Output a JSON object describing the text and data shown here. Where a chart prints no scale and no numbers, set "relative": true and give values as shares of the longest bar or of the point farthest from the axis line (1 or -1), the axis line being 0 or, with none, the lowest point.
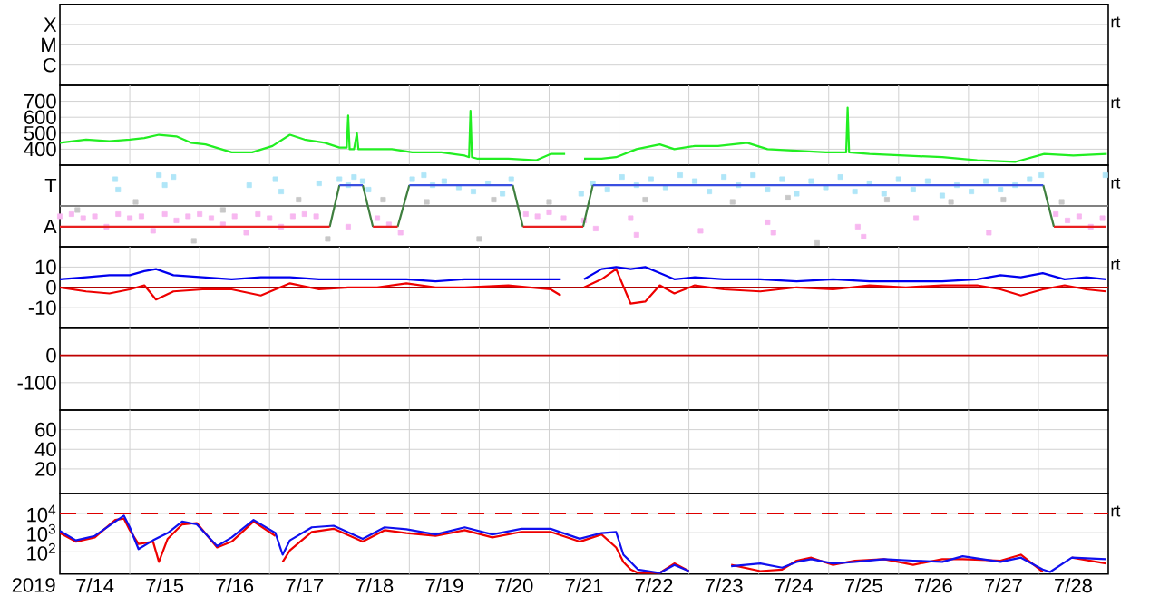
{
  "chart_data": [
    {
      "type": "other",
      "annotations": [
        "X",
        "M",
        "C"
      ],
      "y2label": "rt"
    },
    {
      "type": "line",
      "xlim": [
        "2019-07-14T00:00",
        "2019-07-29T00:00"
      ],
      "xticks": [
        {
          "value": "2019-07-15T00:00",
          "label": null
        },
        {
          "value": "2019-07-16T00:00",
          "label": null
        },
        {
          "value": "2019-07-17T00:00",
          "label": null
        },
        {
          "value": "2019-07-18T00:00",
          "label": null
        },
        {
          "value": "2019-07-19T00:00",
          "label": null
        },
        {
          "value": "2019-07-20T00:00",
          "label": null
        },
        {
          "value": "2019-07-21T00:00",
          "label": null
        },
        {
          "value": "2019-07-22T00:00",
          "label": null
        },
        {
          "value": "2019-07-23T00:00",
          "label": null
        },
        {
          "value": "2019-07-24T00:00",
          "label": null
        },
        {
          "value": "2019-07-25T00:00",
          "label": null
        },
        {
          "value": "2019-07-26T00:00",
          "label": null
        },
        {
          "value": "2019-07-27T00:00",
          "label": null
        },
        {
          "value": "2019-07-28T00:00",
          "label": null
        }
      ],
      "ylim": [
        300,
        800
      ],
      "yticks": [
        400,
        500,
        600,
        700
      ],
      "grid": true,
      "tick_labels": "y",
      "y2label": "rt",
      "x": [
        "2019-07-14T00:00",
        "2019-07-14T09:00",
        "2019-07-14T17:00",
        "2019-07-15T00:00",
        "2019-07-15T05:00",
        "2019-07-15T10:00",
        "2019-07-15T16:00",
        "2019-07-15T21:00",
        "2019-07-16T02:00",
        "2019-07-16T11:00",
        "2019-07-16T18:00",
        "2019-07-17T01:00",
        "2019-07-17T07:00",
        "2019-07-17T12:00",
        "2019-07-17T19:00",
        "2019-07-18T00:00",
        "2019-07-18T02:30",
        "2019-07-18T03:00",
        "2019-07-18T03:30",
        "2019-07-18T05:00",
        "2019-07-18T06:00",
        "2019-07-18T06:30",
        "2019-07-18T08:00",
        "2019-07-18T18:00",
        "2019-07-19T01:00",
        "2019-07-19T11:00",
        "2019-07-19T19:00",
        "2019-07-19T20:30",
        "2019-07-19T21:00",
        "2019-07-19T21:30",
        "2019-07-19T23:30",
        "2019-07-20T10:00",
        "2019-07-20T19:30",
        "2019-07-21T00:30",
        "2019-07-21T05:30",
        "2019-07-21T08:00",
        "2019-07-21T12:00",
        "2019-07-21T18:00",
        "2019-07-21T23:00",
        "2019-07-22T06:00",
        "2019-07-22T14:00",
        "2019-07-22T19:00",
        "2019-07-23T02:00",
        "2019-07-23T10:00",
        "2019-07-23T20:00",
        "2019-07-24T03:00",
        "2019-07-24T13:00",
        "2019-07-24T23:00",
        "2019-07-25T06:00",
        "2019-07-25T06:30",
        "2019-07-25T07:00",
        "2019-07-25T14:00",
        "2019-07-26T02:00",
        "2019-07-26T15:00",
        "2019-07-27T03:00",
        "2019-07-27T16:00",
        "2019-07-28T02:00",
        "2019-07-28T12:00",
        "2019-07-28T23:30"
      ],
      "series": [
        {
          "color": "#22ee22",
          "values": [
            440,
            460,
            450,
            460,
            470,
            490,
            480,
            440,
            430,
            380,
            380,
            420,
            490,
            460,
            440,
            410,
            410,
            610,
            400,
            400,
            500,
            400,
            400,
            400,
            380,
            380,
            360,
            350,
            640,
            350,
            340,
            340,
            330,
            370,
            370,
            null,
            340,
            340,
            350,
            400,
            430,
            400,
            420,
            420,
            440,
            400,
            390,
            380,
            380,
            660,
            380,
            370,
            360,
            350,
            330,
            320,
            370,
            360,
            370
          ]
        }
      ]
    },
    {
      "type": "line",
      "relative": true,
      "xlim": [
        "2019-07-14T00:00",
        "2019-07-29T00:00"
      ],
      "tick_labels": false,
      "annotations": [
        "T",
        "A"
      ],
      "y2label": "rt",
      "ref_lines": [
        {
          "axis": "y",
          "value": 0,
          "color": "#808080"
        }
      ],
      "series": [
        {
          "type": "scatter",
          "marker": "square",
          "color": "#c8c8c8",
          "x": [
            "2019-07-14T06:00",
            "2019-07-15T02:00",
            "2019-07-15T22:00",
            "2019-07-16T08:00",
            "2019-07-17T10:00",
            "2019-07-17T20:00",
            "2019-07-18T15:00",
            "2019-07-19T06:00",
            "2019-07-20T00:00",
            "2019-07-20T05:00",
            "2019-07-21T00:00",
            "2019-07-22T09:00",
            "2019-07-23T15:00",
            "2019-07-24T10:00",
            "2019-07-24T20:00",
            "2019-07-25T20:00",
            "2019-07-26T18:00",
            "2019-07-27T12:00",
            "2019-07-28T08:00"
          ],
          "values": [
            -0.11,
            0.11,
            -0.94,
            -0.11,
            0.17,
            -0.89,
            0.17,
            0.11,
            -0.89,
            0.17,
            0.11,
            0.17,
            0.11,
            0.22,
            -1,
            0.17,
            0.11,
            0.17,
            0.11
          ]
        },
        {
          "type": "scatter",
          "marker": "square",
          "color": "#f7b8f0",
          "x": [
            "2019-07-14T00:00",
            "2019-07-14T04:00",
            "2019-07-14T08:00",
            "2019-07-14T12:00",
            "2019-07-14T16:00",
            "2019-07-14T20:00",
            "2019-07-15T00:00",
            "2019-07-15T04:00",
            "2019-07-15T08:00",
            "2019-07-15T12:00",
            "2019-07-15T16:00",
            "2019-07-15T20:00",
            "2019-07-16T00:00",
            "2019-07-16T04:00",
            "2019-07-16T08:00",
            "2019-07-16T12:00",
            "2019-07-16T16:00",
            "2019-07-16T20:00",
            "2019-07-17T00:00",
            "2019-07-17T04:00",
            "2019-07-17T08:00",
            "2019-07-17T12:00",
            "2019-07-17T16:00",
            "2019-07-18T03:00",
            "2019-07-18T13:00",
            "2019-07-18T17:00",
            "2019-07-18T21:00",
            "2019-07-20T16:00",
            "2019-07-20T20:00",
            "2019-07-21T00:00",
            "2019-07-21T05:00",
            "2019-07-21T12:00",
            "2019-07-21T16:00",
            "2019-07-22T04:00",
            "2019-07-22T06:00",
            "2019-07-23T04:00",
            "2019-07-24T03:00",
            "2019-07-24T05:00",
            "2019-07-25T10:00",
            "2019-07-25T12:00",
            "2019-07-26T06:00",
            "2019-07-27T07:00",
            "2019-07-28T06:00",
            "2019-07-28T10:00",
            "2019-07-28T14:00",
            "2019-07-28T18:00",
            "2019-07-28T22:00"
          ],
          "values": [
            -0.28,
            -0.22,
            -0.33,
            -0.28,
            -0.56,
            -0.22,
            -0.33,
            -0.28,
            -0.67,
            -0.22,
            -0.39,
            -0.28,
            -0.22,
            -0.33,
            -0.5,
            -0.28,
            -0.72,
            -0.22,
            -0.33,
            -0.56,
            -0.28,
            -0.22,
            -0.28,
            -0.56,
            -0.33,
            -0.5,
            -0.72,
            -0.22,
            -0.28,
            -0.17,
            -0.33,
            -0.39,
            -0.61,
            -0.33,
            -0.78,
            -0.67,
            -0.44,
            -0.72,
            -0.56,
            -0.83,
            -0.33,
            -0.72,
            -0.22,
            -0.39,
            -0.28,
            -0.56,
            -0.33
          ]
        },
        {
          "type": "scatter",
          "marker": "square",
          "color": "#b0e6f8",
          "x": [
            "2019-07-14T19:00",
            "2019-07-14T20:00",
            "2019-07-15T10:00",
            "2019-07-15T12:00",
            "2019-07-15T15:00",
            "2019-07-16T17:00",
            "2019-07-17T02:00",
            "2019-07-17T04:00",
            "2019-07-17T17:00",
            "2019-07-18T00:00",
            "2019-07-18T03:00",
            "2019-07-18T05:00",
            "2019-07-18T08:00",
            "2019-07-18T10:00",
            "2019-07-19T01:00",
            "2019-07-19T05:00",
            "2019-07-19T08:00",
            "2019-07-19T12:00",
            "2019-07-19T17:00",
            "2019-07-19T22:00",
            "2019-07-20T03:00",
            "2019-07-20T08:00",
            "2019-07-20T11:00",
            "2019-07-21T11:00",
            "2019-07-21T15:00",
            "2019-07-21T20:00",
            "2019-07-22T01:00",
            "2019-07-22T06:00",
            "2019-07-22T11:00",
            "2019-07-22T16:00",
            "2019-07-22T21:00",
            "2019-07-23T02:00",
            "2019-07-23T07:00",
            "2019-07-23T12:00",
            "2019-07-23T17:00",
            "2019-07-23T22:00",
            "2019-07-24T03:00",
            "2019-07-24T08:00",
            "2019-07-24T13:00",
            "2019-07-24T18:00",
            "2019-07-24T23:00",
            "2019-07-25T04:00",
            "2019-07-25T09:00",
            "2019-07-25T14:00",
            "2019-07-25T19:00",
            "2019-07-26T00:00",
            "2019-07-26T05:00",
            "2019-07-26T10:00",
            "2019-07-26T15:00",
            "2019-07-26T20:00",
            "2019-07-27T01:00",
            "2019-07-27T06:00",
            "2019-07-27T11:00",
            "2019-07-27T16:00",
            "2019-07-27T21:00",
            "2019-07-28T01:00",
            "2019-07-28T23:00"
          ],
          "values": [
            0.72,
            0.44,
            0.83,
            0.56,
            0.78,
            0.56,
            0.72,
            0.39,
            0.61,
            0.72,
            0.56,
            0.78,
            0.67,
            0.44,
            0.72,
            0.83,
            0.56,
            0.67,
            0.5,
            0.39,
            0.61,
            0.33,
            0.72,
            0.33,
            0.61,
            0.44,
            0.78,
            0.56,
            0.72,
            0.5,
            0.83,
            0.67,
            0.39,
            0.78,
            0.56,
            0.83,
            0.44,
            0.72,
            0.33,
            0.67,
            0.5,
            0.78,
            0.39,
            0.61,
            0.33,
            0.72,
            0.44,
            0.67,
            0.28,
            0.56,
            0.39,
            0.67,
            0.44,
            0.56,
            0.72,
            0.83,
            0.83
          ]
        },
        {
          "type": "line",
          "color": "#3f7f3f",
          "x": [
            "2019-07-17T20:40",
            "2019-07-18T00:00",
            "2019-07-18T04:00",
            "2019-07-18T08:00",
            "2019-07-18T11:30",
            "2019-07-18T16:00",
            "2019-07-18T20:00",
            "2019-07-19T00:00",
            "2019-07-19T12:00",
            "2019-07-20T11:30",
            "2019-07-20T15:00",
            "2019-07-21T00:00",
            "2019-07-21T11:40",
            "2019-07-21T15:00",
            "2019-07-24T00:00",
            "2019-07-28T01:40",
            "2019-07-28T05:20"
          ],
          "values": [
            -0.56,
            0.56,
            null,
            0.56,
            -0.56,
            null,
            -0.56,
            0.56,
            null,
            0.56,
            -0.56,
            null,
            -0.56,
            0.56,
            null,
            0.56,
            -0.56
          ]
        },
        {
          "type": "line",
          "color": "#e82020",
          "x": [
            "2019-07-14T00:00",
            "2019-07-17T20:40",
            "2019-07-18T00:00",
            "2019-07-18T11:30",
            "2019-07-18T20:00",
            "2019-07-19T12:00",
            "2019-07-20T15:00",
            "2019-07-21T11:40",
            "2019-07-24T00:00",
            "2019-07-28T05:20",
            "2019-07-28T23:20"
          ],
          "values": [
            -0.56,
            -0.56,
            null,
            -0.56,
            -0.56,
            null,
            -0.56,
            -0.56,
            null,
            -0.56,
            -0.56
          ]
        },
        {
          "type": "line",
          "color": "#3a4fe0",
          "x": [
            "2019-07-18T00:00",
            "2019-07-18T08:00",
            "2019-07-18T16:00",
            "2019-07-19T00:00",
            "2019-07-20T11:30",
            "2019-07-21T00:00",
            "2019-07-21T15:00",
            "2019-07-28T01:40"
          ],
          "values": [
            0.56,
            0.56,
            null,
            0.56,
            0.56,
            null,
            0.56,
            0.56
          ]
        }
      ]
    },
    {
      "type": "line",
      "xlim": [
        "2019-07-14T00:00",
        "2019-07-29T00:00"
      ],
      "xticks": [
        {
          "value": "2019-07-15T00:00",
          "label": null
        },
        {
          "value": "2019-07-16T00:00",
          "label": null
        },
        {
          "value": "2019-07-17T00:00",
          "label": null
        },
        {
          "value": "2019-07-18T00:00",
          "label": null
        },
        {
          "value": "2019-07-19T00:00",
          "label": null
        },
        {
          "value": "2019-07-20T00:00",
          "label": null
        },
        {
          "value": "2019-07-21T00:00",
          "label": null
        },
        {
          "value": "2019-07-22T00:00",
          "label": null
        },
        {
          "value": "2019-07-23T00:00",
          "label": null
        },
        {
          "value": "2019-07-24T00:00",
          "label": null
        },
        {
          "value": "2019-07-25T00:00",
          "label": null
        },
        {
          "value": "2019-07-26T00:00",
          "label": null
        },
        {
          "value": "2019-07-27T00:00",
          "label": null
        },
        {
          "value": "2019-07-28T00:00",
          "label": null
        }
      ],
      "ylim": [
        -20,
        20
      ],
      "yticks": [
        -10,
        0,
        10
      ],
      "grid": true,
      "tick_labels": "y",
      "y2label": "rt",
      "ref_lines": [
        {
          "axis": "y",
          "value": 0,
          "color": "#b00000"
        }
      ],
      "x": [
        "2019-07-14T00:00",
        "2019-07-14T09:00",
        "2019-07-14T17:00",
        "2019-07-15T00:00",
        "2019-07-15T05:00",
        "2019-07-15T09:00",
        "2019-07-15T15:00",
        "2019-07-16T01:00",
        "2019-07-16T11:00",
        "2019-07-16T21:00",
        "2019-07-17T07:00",
        "2019-07-17T17:00",
        "2019-07-18T03:00",
        "2019-07-18T13:00",
        "2019-07-18T23:00",
        "2019-07-19T09:00",
        "2019-07-19T19:00",
        "2019-07-20T10:00",
        "2019-07-21T00:30",
        "2019-07-21T04:00",
        "2019-07-21T08:00",
        "2019-07-21T12:00",
        "2019-07-21T18:00",
        "2019-07-21T23:00",
        "2019-07-22T04:00",
        "2019-07-22T09:00",
        "2019-07-22T14:00",
        "2019-07-22T19:00",
        "2019-07-23T02:00",
        "2019-07-23T12:00",
        "2019-07-24T00:30",
        "2019-07-24T13:00",
        "2019-07-25T01:30",
        "2019-07-25T14:00",
        "2019-07-26T02:30",
        "2019-07-26T15:00",
        "2019-07-27T03:00",
        "2019-07-27T11:00",
        "2019-07-27T18:00",
        "2019-07-28T01:30",
        "2019-07-28T09:00",
        "2019-07-28T16:30",
        "2019-07-28T23:15"
      ],
      "series": [
        {
          "color": "#0000ee",
          "values": [
            4,
            5,
            6,
            6,
            8,
            9,
            6,
            5,
            4,
            5,
            5,
            4,
            4,
            4,
            4,
            3,
            4,
            4,
            4,
            4,
            null,
            4,
            9,
            10,
            9,
            10,
            7,
            4,
            5,
            4,
            4,
            3,
            4,
            3,
            3,
            3,
            4,
            6,
            5,
            7,
            4,
            5,
            4
          ]
        },
        {
          "color": "#ee0000",
          "values": [
            0,
            -2,
            -3,
            -1,
            1,
            -6,
            -2,
            -1,
            -1,
            -4,
            2,
            -1,
            0,
            0,
            2,
            0,
            0,
            1,
            -1,
            -4,
            null,
            0,
            4,
            9,
            -8,
            -7,
            1,
            -3,
            1,
            -1,
            -2,
            0,
            -1,
            1,
            0,
            1,
            1,
            -1,
            -4,
            -1,
            1,
            -1,
            -2
          ]
        }
      ]
    },
    {
      "type": "line",
      "xlim": [
        "2019-07-14T00:00",
        "2019-07-29T00:00"
      ],
      "xticks": [
        {
          "value": "2019-07-15T00:00",
          "label": null
        },
        {
          "value": "2019-07-16T00:00",
          "label": null
        },
        {
          "value": "2019-07-17T00:00",
          "label": null
        },
        {
          "value": "2019-07-18T00:00",
          "label": null
        },
        {
          "value": "2019-07-19T00:00",
          "label": null
        },
        {
          "value": "2019-07-20T00:00",
          "label": null
        },
        {
          "value": "2019-07-21T00:00",
          "label": null
        },
        {
          "value": "2019-07-22T00:00",
          "label": null
        },
        {
          "value": "2019-07-23T00:00",
          "label": null
        },
        {
          "value": "2019-07-24T00:00",
          "label": null
        },
        {
          "value": "2019-07-25T00:00",
          "label": null
        },
        {
          "value": "2019-07-26T00:00",
          "label": null
        },
        {
          "value": "2019-07-27T00:00",
          "label": null
        },
        {
          "value": "2019-07-28T00:00",
          "label": null
        }
      ],
      "ylim": [
        -200,
        100
      ],
      "yticks": [
        -100,
        0
      ],
      "grid": true,
      "tick_labels": "y",
      "ref_lines": [
        {
          "axis": "y",
          "value": 0,
          "color": "#c00000"
        }
      ]
    },
    {
      "type": "line",
      "xlim": [
        "2019-07-14T00:00",
        "2019-07-29T00:00"
      ],
      "xticks": [
        {
          "value": "2019-07-15T00:00",
          "label": null
        },
        {
          "value": "2019-07-16T00:00",
          "label": null
        },
        {
          "value": "2019-07-17T00:00",
          "label": null
        },
        {
          "value": "2019-07-18T00:00",
          "label": null
        },
        {
          "value": "2019-07-19T00:00",
          "label": null
        },
        {
          "value": "2019-07-20T00:00",
          "label": null
        },
        {
          "value": "2019-07-21T00:00",
          "label": null
        },
        {
          "value": "2019-07-22T00:00",
          "label": null
        },
        {
          "value": "2019-07-23T00:00",
          "label": null
        },
        {
          "value": "2019-07-24T00:00",
          "label": null
        },
        {
          "value": "2019-07-25T00:00",
          "label": null
        },
        {
          "value": "2019-07-26T00:00",
          "label": null
        },
        {
          "value": "2019-07-27T00:00",
          "label": null
        },
        {
          "value": "2019-07-28T00:00",
          "label": null
        }
      ],
      "ylim": [
        -5,
        80
      ],
      "yticks": [
        20,
        40,
        60
      ],
      "grid": true,
      "tick_labels": "y"
    },
    {
      "type": "line",
      "xlim": [
        "2019-07-14T00:00",
        "2019-07-29T00:00"
      ],
      "xticks": [
        {
          "value": "2019-07-14T12:00",
          "label": "7/14"
        },
        {
          "value": "2019-07-15T00:00",
          "label": null
        },
        {
          "value": "2019-07-15T12:00",
          "label": "7/15"
        },
        {
          "value": "2019-07-16T00:00",
          "label": null
        },
        {
          "value": "2019-07-16T12:00",
          "label": "7/16"
        },
        {
          "value": "2019-07-17T00:00",
          "label": null
        },
        {
          "value": "2019-07-17T12:00",
          "label": "7/17"
        },
        {
          "value": "2019-07-18T00:00",
          "label": null
        },
        {
          "value": "2019-07-18T12:00",
          "label": "7/18"
        },
        {
          "value": "2019-07-19T00:00",
          "label": null
        },
        {
          "value": "2019-07-19T12:00",
          "label": "7/19"
        },
        {
          "value": "2019-07-20T00:00",
          "label": null
        },
        {
          "value": "2019-07-20T12:00",
          "label": "7/20"
        },
        {
          "value": "2019-07-21T00:00",
          "label": null
        },
        {
          "value": "2019-07-21T12:00",
          "label": "7/21"
        },
        {
          "value": "2019-07-22T00:00",
          "label": null
        },
        {
          "value": "2019-07-22T12:00",
          "label": "7/22"
        },
        {
          "value": "2019-07-23T00:00",
          "label": null
        },
        {
          "value": "2019-07-23T12:00",
          "label": "7/23"
        },
        {
          "value": "2019-07-24T00:00",
          "label": null
        },
        {
          "value": "2019-07-24T12:00",
          "label": "7/24"
        },
        {
          "value": "2019-07-25T00:00",
          "label": null
        },
        {
          "value": "2019-07-25T12:00",
          "label": "7/25"
        },
        {
          "value": "2019-07-26T00:00",
          "label": null
        },
        {
          "value": "2019-07-26T12:00",
          "label": "7/26"
        },
        {
          "value": "2019-07-27T00:00",
          "label": null
        },
        {
          "value": "2019-07-27T12:00",
          "label": "7/27"
        },
        {
          "value": "2019-07-28T00:00",
          "label": null
        },
        {
          "value": "2019-07-28T12:00",
          "label": "7/28"
        }
      ],
      "ylim": [
        7,
        110000
      ],
      "yticks": [
        {
          "value": 100,
          "label": "10$^{2}$"
        },
        {
          "value": 1000,
          "label": "10$^{3}$"
        },
        {
          "value": 10000,
          "label": "10$^{4}$"
        }
      ],
      "log": true,
      "grid": true,
      "xlabel": "2019",
      "y2label": "rt",
      "ref_lines": [
        {
          "axis": "y",
          "value": 10000,
          "color": "#dd0000",
          "line_style": "dashed"
        }
      ],
      "x": [
        "2019-07-14T00:00",
        "2019-07-14T05:30",
        "2019-07-14T12:00",
        "2019-07-14T19:00",
        "2019-07-14T22:00",
        "2019-07-15T00:00",
        "2019-07-15T03:00",
        "2019-07-15T08:00",
        "2019-07-15T10:00",
        "2019-07-15T13:00",
        "2019-07-15T18:00",
        "2019-07-15T23:00",
        "2019-07-16T06:00",
        "2019-07-16T11:00",
        "2019-07-16T18:30",
        "2019-07-17T02:00",
        "2019-07-17T03:00",
        "2019-07-17T04:30",
        "2019-07-17T07:00",
        "2019-07-17T14:30",
        "2019-07-17T22:00",
        "2019-07-18T08:00",
        "2019-07-18T15:30",
        "2019-07-18T23:00",
        "2019-07-19T09:00",
        "2019-07-19T19:00",
        "2019-07-20T04:30",
        "2019-07-20T14:30",
        "2019-07-21T00:30",
        "2019-07-21T10:30",
        "2019-07-21T18:00",
        "2019-07-21T23:00",
        "2019-07-22T01:30",
        "2019-07-22T04:00",
        "2019-07-22T06:30",
        "2019-07-22T14:00",
        "2019-07-22T19:00",
        "2019-07-23T00:00",
        "2019-07-23T07:00",
        "2019-07-23T12:00",
        "2019-07-23T14:30",
        "2019-07-24T00:30",
        "2019-07-24T08:00",
        "2019-07-24T13:00",
        "2019-07-24T18:00",
        "2019-07-25T01:30",
        "2019-07-25T09:00",
        "2019-07-25T19:00",
        "2019-07-26T05:00",
        "2019-07-26T15:00",
        "2019-07-26T22:00",
        "2019-07-27T11:00",
        "2019-07-27T18:00",
        "2019-07-28T01:30",
        "2019-07-28T04:00",
        "2019-07-28T11:30",
        "2019-07-28T23:15"
      ],
      "series": [
        {
          "color": "#ee0000",
          "values": [
            960,
            340,
            570,
            4600,
            5400,
            1350,
            260,
            340,
            30,
            480,
            2700,
            3200,
            170,
            340,
            3800,
            680,
            null,
            30,
            120,
            1100,
            1600,
            340,
            1350,
            960,
            680,
            1350,
            570,
            1100,
            1100,
            340,
            810,
            170,
            30,
            12,
            8,
            8,
            25,
            10,
            null,
            null,
            21,
            10,
            12,
            35,
            50,
            21,
            35,
            42,
            21,
            42,
            42,
            35,
            71,
            9,
            null,
            50,
            25
          ]
        },
        {
          "color": "#1010ee",
          "values": [
            1250,
            400,
            680,
            3800,
            7700,
            1900,
            140,
            400,
            570,
            960,
            3800,
            2700,
            200,
            570,
            4600,
            960,
            340,
            71,
            400,
            1900,
            2300,
            480,
            1900,
            1500,
            810,
            1900,
            810,
            1600,
            1600,
            480,
            960,
            1100,
            71,
            30,
            12,
            8,
            21,
            10,
            null,
            null,
            18,
            25,
            15,
            30,
            42,
            25,
            30,
            42,
            35,
            30,
            59,
            30,
            50,
            12,
            9,
            50,
            42
          ]
        }
      ]
    }
  ]
}
